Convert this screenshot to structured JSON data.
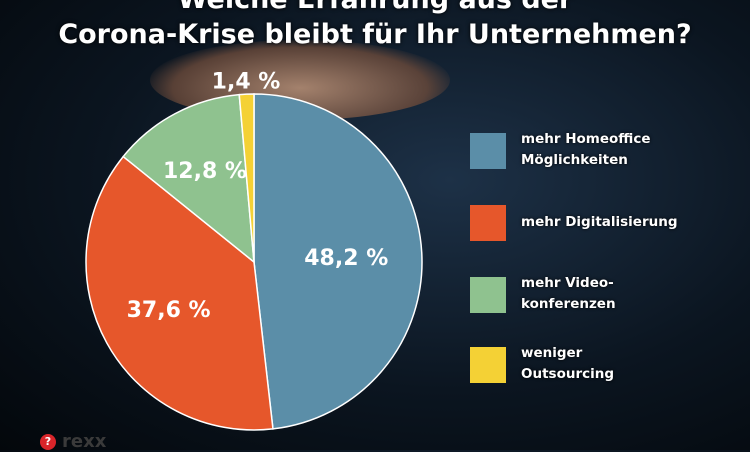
{
  "chart_data": {
    "type": "pie",
    "title_lines": [
      "Welche Erfahrung aus der",
      "Corona-Krise bleibt für Ihr Unternehmen?"
    ],
    "slices": [
      {
        "label": "mehr Homeoffice Möglichkeiten",
        "legend_lines": [
          "mehr Homeoffice",
          "Möglichkeiten"
        ],
        "value": 48.2,
        "display": "48,2 %",
        "color": "#5b8ea8"
      },
      {
        "label": "mehr Digitalisierung",
        "legend_lines": [
          "mehr Digitalisierung"
        ],
        "value": 37.6,
        "display": "37,6 %",
        "color": "#e6572b"
      },
      {
        "label": "mehr Videokonferenzen",
        "legend_lines": [
          "mehr Video-",
          "konferenzen"
        ],
        "value": 12.8,
        "display": "12,8 %",
        "color": "#8fc28f"
      },
      {
        "label": "weniger Outsourcing",
        "legend_lines": [
          "weniger",
          "Outsourcing"
        ],
        "value": 1.4,
        "display": "1,4 %",
        "color": "#f4d135"
      }
    ],
    "legend_position": "right"
  },
  "logo": {
    "mark": "?",
    "text": "rexx"
  }
}
